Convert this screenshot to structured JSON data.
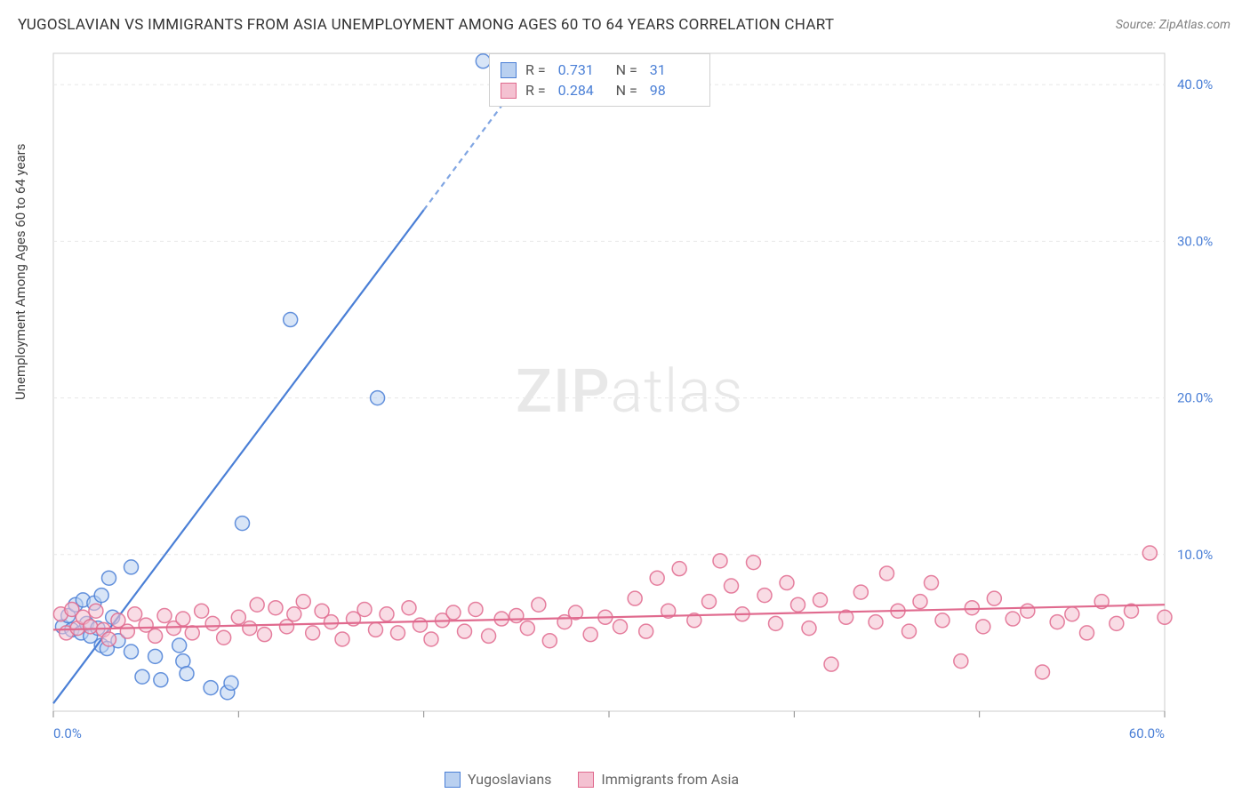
{
  "title": "YUGOSLAVIAN VS IMMIGRANTS FROM ASIA UNEMPLOYMENT AMONG AGES 60 TO 64 YEARS CORRELATION CHART",
  "source": "Source: ZipAtlas.com",
  "ylabel": "Unemployment Among Ages 60 to 64 years",
  "watermark_left": "ZIP",
  "watermark_right": "atlas",
  "chart": {
    "type": "scatter",
    "background_color": "#ffffff",
    "grid_color": "#e8e8e8",
    "border_color": "#cccccc",
    "xlim": [
      0,
      60
    ],
    "ylim": [
      0,
      42
    ],
    "x_ticks": [
      0,
      10,
      20,
      30,
      40,
      50,
      60
    ],
    "y_right_ticks": [
      10,
      20,
      30,
      40
    ],
    "x_labels_shown": {
      "0": "0.0%",
      "60": "60.0%"
    },
    "y_labels_shown": {
      "10": "10.0%",
      "20": "20.0%",
      "30": "30.0%",
      "40": "40.0%"
    },
    "tick_label_color": "#4a7fd6",
    "marker_radius": 8,
    "marker_stroke_width": 1.5,
    "marker_fill_opacity": 0.28,
    "line_width": 2.2,
    "series": [
      {
        "name": "Yugoslavians",
        "color": "#4a7fd6",
        "fill": "#b9d0f0",
        "R": "0.731",
        "N": "31",
        "trend": {
          "x1": 0,
          "y1": 0.5,
          "x2": 20,
          "y2": 32,
          "extend_x2": 26,
          "extend_y2": 41.5
        },
        "points": [
          [
            0.5,
            5.4
          ],
          [
            0.8,
            6.1
          ],
          [
            1.0,
            5.2
          ],
          [
            1.2,
            6.8
          ],
          [
            1.5,
            5.0
          ],
          [
            1.6,
            7.1
          ],
          [
            1.8,
            5.6
          ],
          [
            2.0,
            4.8
          ],
          [
            2.2,
            6.9
          ],
          [
            2.4,
            5.3
          ],
          [
            2.6,
            7.4
          ],
          [
            2.6,
            4.2
          ],
          [
            2.9,
            4.0
          ],
          [
            3.0,
            8.5
          ],
          [
            3.2,
            6.0
          ],
          [
            3.5,
            4.5
          ],
          [
            4.2,
            9.2
          ],
          [
            4.2,
            3.8
          ],
          [
            4.8,
            2.2
          ],
          [
            5.5,
            3.5
          ],
          [
            5.8,
            2.0
          ],
          [
            6.8,
            4.2
          ],
          [
            7.0,
            3.2
          ],
          [
            7.2,
            2.4
          ],
          [
            8.5,
            1.5
          ],
          [
            9.4,
            1.2
          ],
          [
            9.6,
            1.8
          ],
          [
            10.2,
            12.0
          ],
          [
            12.8,
            25.0
          ],
          [
            17.5,
            20.0
          ],
          [
            23.2,
            41.5
          ]
        ]
      },
      {
        "name": "Immigrants from Asia",
        "color": "#e06a8e",
        "fill": "#f4c1d1",
        "R": "0.284",
        "N": "98",
        "trend": {
          "x1": 0,
          "y1": 5.2,
          "x2": 60,
          "y2": 6.8
        },
        "points": [
          [
            0.4,
            6.2
          ],
          [
            0.7,
            5.0
          ],
          [
            1.0,
            6.5
          ],
          [
            1.3,
            5.3
          ],
          [
            1.6,
            6.0
          ],
          [
            2.0,
            5.4
          ],
          [
            2.3,
            6.4
          ],
          [
            2.7,
            5.2
          ],
          [
            3.0,
            4.6
          ],
          [
            3.5,
            5.8
          ],
          [
            4.0,
            5.1
          ],
          [
            4.4,
            6.2
          ],
          [
            5.0,
            5.5
          ],
          [
            5.5,
            4.8
          ],
          [
            6.0,
            6.1
          ],
          [
            6.5,
            5.3
          ],
          [
            7.0,
            5.9
          ],
          [
            7.5,
            5.0
          ],
          [
            8.0,
            6.4
          ],
          [
            8.6,
            5.6
          ],
          [
            9.2,
            4.7
          ],
          [
            10.0,
            6.0
          ],
          [
            10.6,
            5.3
          ],
          [
            11.0,
            6.8
          ],
          [
            11.4,
            4.9
          ],
          [
            12.0,
            6.6
          ],
          [
            12.6,
            5.4
          ],
          [
            13.0,
            6.2
          ],
          [
            13.5,
            7.0
          ],
          [
            14.0,
            5.0
          ],
          [
            14.5,
            6.4
          ],
          [
            15.0,
            5.7
          ],
          [
            15.6,
            4.6
          ],
          [
            16.2,
            5.9
          ],
          [
            16.8,
            6.5
          ],
          [
            17.4,
            5.2
          ],
          [
            18.0,
            6.2
          ],
          [
            18.6,
            5.0
          ],
          [
            19.2,
            6.6
          ],
          [
            19.8,
            5.5
          ],
          [
            20.4,
            4.6
          ],
          [
            21.0,
            5.8
          ],
          [
            21.6,
            6.3
          ],
          [
            22.2,
            5.1
          ],
          [
            22.8,
            6.5
          ],
          [
            23.5,
            4.8
          ],
          [
            24.2,
            5.9
          ],
          [
            25.0,
            6.1
          ],
          [
            25.6,
            5.3
          ],
          [
            26.2,
            6.8
          ],
          [
            26.8,
            4.5
          ],
          [
            27.6,
            5.7
          ],
          [
            28.2,
            6.3
          ],
          [
            29.0,
            4.9
          ],
          [
            29.8,
            6.0
          ],
          [
            30.6,
            5.4
          ],
          [
            31.4,
            7.2
          ],
          [
            32.0,
            5.1
          ],
          [
            32.6,
            8.5
          ],
          [
            33.2,
            6.4
          ],
          [
            33.8,
            9.1
          ],
          [
            34.6,
            5.8
          ],
          [
            35.4,
            7.0
          ],
          [
            36.0,
            9.6
          ],
          [
            36.6,
            8.0
          ],
          [
            37.2,
            6.2
          ],
          [
            37.8,
            9.5
          ],
          [
            38.4,
            7.4
          ],
          [
            39.0,
            5.6
          ],
          [
            39.6,
            8.2
          ],
          [
            40.2,
            6.8
          ],
          [
            40.8,
            5.3
          ],
          [
            41.4,
            7.1
          ],
          [
            42.0,
            3.0
          ],
          [
            42.8,
            6.0
          ],
          [
            43.6,
            7.6
          ],
          [
            44.4,
            5.7
          ],
          [
            45.0,
            8.8
          ],
          [
            45.6,
            6.4
          ],
          [
            46.2,
            5.1
          ],
          [
            46.8,
            7.0
          ],
          [
            47.4,
            8.2
          ],
          [
            48.0,
            5.8
          ],
          [
            49.0,
            3.2
          ],
          [
            49.6,
            6.6
          ],
          [
            50.2,
            5.4
          ],
          [
            50.8,
            7.2
          ],
          [
            51.8,
            5.9
          ],
          [
            52.6,
            6.4
          ],
          [
            53.4,
            2.5
          ],
          [
            54.2,
            5.7
          ],
          [
            55.0,
            6.2
          ],
          [
            55.8,
            5.0
          ],
          [
            56.6,
            7.0
          ],
          [
            57.4,
            5.6
          ],
          [
            58.2,
            6.4
          ],
          [
            59.2,
            10.1
          ],
          [
            60.0,
            6.0
          ]
        ]
      }
    ]
  },
  "legend_top": {
    "rows": [
      {
        "swatch_fill": "#b9d0f0",
        "swatch_border": "#4a7fd6",
        "r_label": "R =",
        "r_val": "0.731",
        "n_label": "N =",
        "n_val": "31"
      },
      {
        "swatch_fill": "#f4c1d1",
        "swatch_border": "#e06a8e",
        "r_label": "R =",
        "r_val": "0.284",
        "n_label": "N =",
        "n_val": "98"
      }
    ]
  },
  "legend_bottom": {
    "items": [
      {
        "swatch_fill": "#b9d0f0",
        "swatch_border": "#4a7fd6",
        "label": "Yugoslavians"
      },
      {
        "swatch_fill": "#f4c1d1",
        "swatch_border": "#e06a8e",
        "label": "Immigrants from Asia"
      }
    ]
  }
}
